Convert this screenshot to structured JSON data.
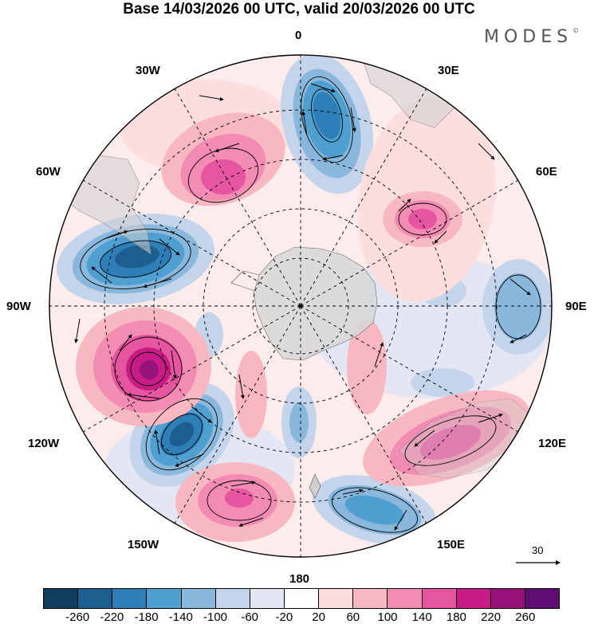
{
  "title": "Base 14/03/2026 00 UTC, valid 20/03/2026 00 UTC",
  "brand": {
    "name": "MODES",
    "mark": "©"
  },
  "map_labels": {
    "top": "0",
    "bottom": "180",
    "left": "90W",
    "right": "90E",
    "w30": "30W",
    "e30": "30E",
    "w60": "60W",
    "e60": "60E",
    "w120": "120W",
    "e120": "120E",
    "w150": "150W",
    "e150": "150E"
  },
  "reference_vector": {
    "value": "30"
  },
  "colorbar": {
    "colors": [
      "#0f3d5e",
      "#1b5e8f",
      "#2e7eb8",
      "#4f9fd0",
      "#8ab8dc",
      "#c4d4ea",
      "#e4e7f3",
      "#ffffff",
      "#fbdedd",
      "#f7b8c2",
      "#f28cb3",
      "#e6559f",
      "#c81b86",
      "#96127a",
      "#5e0e72"
    ],
    "ticks": [
      "-260",
      "-220",
      "-180",
      "-140",
      "-100",
      "-60",
      "-20",
      "20",
      "60",
      "100",
      "140",
      "180",
      "220",
      "260"
    ]
  },
  "colors": {
    "land": "#d8d8d8",
    "frame": "#000000"
  }
}
